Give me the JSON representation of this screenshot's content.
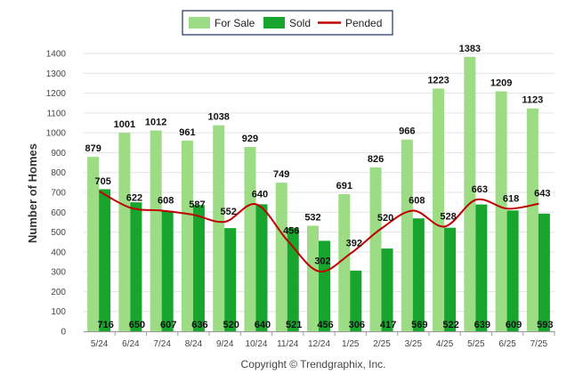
{
  "chart_data": {
    "type": "bar",
    "title": "",
    "xlabel": "",
    "ylabel": "Number of Homes",
    "ylim": [
      0,
      1400
    ],
    "ytick_step": 100,
    "grid": true,
    "legend_position": "top-center",
    "categories": [
      "5/24",
      "6/24",
      "7/24",
      "8/24",
      "9/24",
      "10/24",
      "11/24",
      "12/24",
      "1/25",
      "2/25",
      "3/25",
      "4/25",
      "5/25",
      "6/25",
      "7/25"
    ],
    "series": [
      {
        "name": "For Sale",
        "type": "bar",
        "color": "#9cdc84",
        "values": [
          879,
          1001,
          1012,
          961,
          1038,
          929,
          749,
          532,
          691,
          826,
          966,
          1223,
          1383,
          1209,
          1123
        ]
      },
      {
        "name": "Sold",
        "type": "bar",
        "color": "#18a52e",
        "values": [
          716,
          650,
          607,
          636,
          520,
          640,
          521,
          456,
          306,
          417,
          569,
          522,
          639,
          609,
          593
        ]
      },
      {
        "name": "Pended",
        "type": "line",
        "color": "#c00000",
        "values": [
          705,
          622,
          608,
          587,
          552,
          640,
          456,
          302,
          392,
          520,
          608,
          528,
          663,
          618,
          643
        ]
      }
    ]
  },
  "copyright": "Copyright © Trendgraphix, Inc."
}
